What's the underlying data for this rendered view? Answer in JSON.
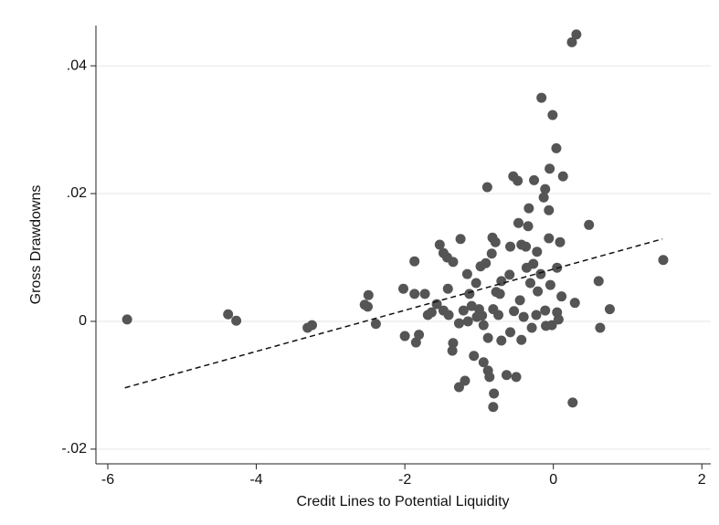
{
  "chart_data": {
    "type": "scatter",
    "x_label": "Credit Lines to Potential Liquidity",
    "y_label": "Gross Drawdowns",
    "xlim": [
      -6.16,
      2.12
    ],
    "ylim": [
      -0.0223,
      0.0463
    ],
    "xticks": [
      -6,
      -4,
      -2,
      0,
      2
    ],
    "yticks": [
      {
        "value": -0.02,
        "label": "-.02"
      },
      {
        "value": 0,
        "label": "0"
      },
      {
        "value": 0.02,
        "label": ".02"
      },
      {
        "value": 0.04,
        "label": ".04"
      }
    ],
    "grid": true,
    "series": [
      {
        "color": "#555555",
        "x": [
          -5.74,
          -4.38,
          -4.27,
          -3.31,
          -3.25,
          -2.54,
          -2.49,
          -2.5,
          -2.39,
          -2.02,
          -2.0,
          -1.87,
          -1.87,
          -1.85,
          -1.81,
          -1.69,
          -1.73,
          -1.57,
          -1.53,
          -1.48,
          -1.43,
          -1.35,
          -1.42,
          -1.48,
          -1.41,
          -1.36,
          -1.35,
          -1.27,
          -1.25,
          -1.27,
          -1.19,
          -1.21,
          -1.16,
          -1.13,
          -1.1,
          -1.07,
          -1.04,
          -1.0,
          -0.94,
          -0.98,
          -0.89,
          -0.91,
          -0.94,
          -0.88,
          -0.86,
          -0.82,
          -0.78,
          -0.83,
          -0.8,
          -0.81,
          -0.77,
          -0.81,
          -0.72,
          -0.74,
          -0.7,
          -0.63,
          -0.59,
          -0.58,
          -0.58,
          -0.54,
          -0.48,
          -0.5,
          -0.47,
          -0.45,
          -0.43,
          -0.43,
          -0.4,
          -0.37,
          -0.36,
          -0.33,
          -0.34,
          -0.31,
          -0.29,
          -0.26,
          -0.27,
          -0.22,
          -0.23,
          -0.21,
          -0.16,
          -0.13,
          -0.11,
          -0.1,
          -0.06,
          -0.05,
          -0.06,
          -0.04,
          -0.02,
          -0.01,
          0.04,
          0.05,
          0.05,
          0.09,
          0.13,
          0.11,
          0.25,
          0.31,
          0.26,
          0.29,
          0.48,
          0.61,
          0.63,
          0.76,
          1.48,
          0.07,
          -0.11,
          -1.03,
          -1.64,
          -0.7,
          -0.88,
          -0.53,
          -0.17,
          -1.15,
          -0.96
        ],
        "y": [
          0.0003,
          0.0011,
          0.0001,
          -0.001,
          -0.0006,
          0.0026,
          0.0041,
          0.0023,
          -0.0004,
          0.0051,
          -0.0023,
          0.0043,
          0.0094,
          -0.0033,
          -0.0021,
          0.001,
          0.0043,
          0.0027,
          0.012,
          0.0107,
          0.01,
          0.0093,
          0.0051,
          0.0017,
          0.001,
          -0.0046,
          -0.0034,
          -0.0003,
          0.0129,
          -0.0103,
          -0.0093,
          0.0017,
          0.0074,
          0.0043,
          0.0024,
          -0.0054,
          0.006,
          0.0019,
          -0.0006,
          0.0086,
          0.021,
          0.0091,
          -0.0064,
          -0.0077,
          -0.0087,
          0.0131,
          0.0124,
          0.0106,
          -0.0113,
          -0.0134,
          0.0046,
          0.0019,
          0.0043,
          0.001,
          0.0063,
          -0.0084,
          0.0073,
          0.0117,
          -0.0017,
          0.0227,
          0.022,
          -0.0087,
          0.0154,
          0.0033,
          0.012,
          -0.0029,
          0.0007,
          0.0117,
          0.0084,
          0.0177,
          0.0149,
          0.006,
          -0.001,
          0.0221,
          0.009,
          0.0109,
          0.001,
          0.0047,
          0.035,
          0.0194,
          0.0207,
          -0.0007,
          0.0174,
          0.0239,
          0.013,
          0.0057,
          -0.0006,
          0.0323,
          0.0271,
          0.0084,
          0.0014,
          0.0124,
          0.0227,
          0.0039,
          0.0437,
          0.0449,
          -0.0127,
          0.0029,
          0.0151,
          0.0063,
          -0.001,
          0.0019,
          0.0096,
          0.0003,
          0.0017,
          0.0007,
          0.0014,
          -0.003,
          -0.0026,
          0.0016,
          0.0074,
          0.0,
          0.0009
        ]
      }
    ],
    "fit_line": {
      "color": "#111111",
      "x": [
        -5.77,
        1.47
      ],
      "y": [
        -0.0104,
        0.0129
      ]
    }
  }
}
